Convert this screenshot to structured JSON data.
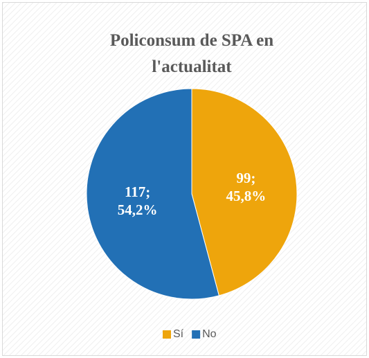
{
  "chart_data": {
    "type": "pie",
    "title": "Policonsum de SPA en l'actualitat",
    "categories": [
      "Sí",
      "No"
    ],
    "values": [
      99,
      117
    ],
    "value_labels": [
      "99; 45,8%",
      "117; 54,2%"
    ],
    "colors": [
      "#eea50c",
      "#2270b5"
    ],
    "legend": "bottom"
  }
}
